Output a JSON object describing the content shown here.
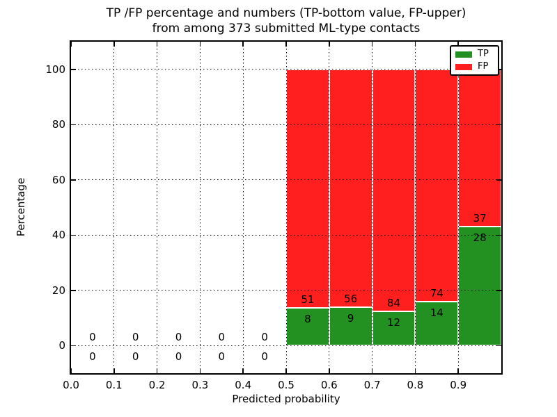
{
  "chart_data": {
    "type": "bar",
    "stacked": true,
    "title_lines": [
      "TP /FP percentage and numbers (TP-bottom value, FP-upper)",
      "from among 373 submitted ML-type contacts"
    ],
    "xlabel": "Predicted probability",
    "ylabel": "Percentage",
    "xlim": [
      0.0,
      1.0
    ],
    "ylim": [
      -10,
      110
    ],
    "xticks": [
      {
        "value": 0.0,
        "label": "0.0"
      },
      {
        "value": 0.1,
        "label": "0.1"
      },
      {
        "value": 0.2,
        "label": "0.2"
      },
      {
        "value": 0.3,
        "label": "0.3"
      },
      {
        "value": 0.4,
        "label": "0.4"
      },
      {
        "value": 0.5,
        "label": "0.5"
      },
      {
        "value": 0.6,
        "label": "0.6"
      },
      {
        "value": 0.7,
        "label": "0.7"
      },
      {
        "value": 0.8,
        "label": "0.8"
      },
      {
        "value": 0.9,
        "label": "0.9"
      }
    ],
    "yticks": [
      {
        "value": 0,
        "label": "0"
      },
      {
        "value": 20,
        "label": "20"
      },
      {
        "value": 40,
        "label": "40"
      },
      {
        "value": 60,
        "label": "60"
      },
      {
        "value": 80,
        "label": "80"
      },
      {
        "value": 100,
        "label": "100"
      }
    ],
    "grid": {
      "style": "dotted",
      "axes": "both",
      "drawn_above_bars": true
    },
    "colors": {
      "tp": "#229122",
      "fp": "#ff1f1f",
      "bar_edge": "#ffffff"
    },
    "legend": {
      "position": "upper-right",
      "entries": [
        {
          "label": "TP",
          "color_key": "tp"
        },
        {
          "label": "FP",
          "color_key": "fp"
        }
      ]
    },
    "annotation_rule": "FP count above TP/FP boundary, TP count below; bars are percentage-stacked to 100",
    "bins": [
      {
        "range": [
          0.0,
          0.1
        ],
        "tp": 0,
        "fp": 0
      },
      {
        "range": [
          0.1,
          0.2
        ],
        "tp": 0,
        "fp": 0
      },
      {
        "range": [
          0.2,
          0.3
        ],
        "tp": 0,
        "fp": 0
      },
      {
        "range": [
          0.3,
          0.4
        ],
        "tp": 0,
        "fp": 0
      },
      {
        "range": [
          0.4,
          0.5
        ],
        "tp": 0,
        "fp": 0
      },
      {
        "range": [
          0.5,
          0.6
        ],
        "tp": 8,
        "fp": 51
      },
      {
        "range": [
          0.6,
          0.7
        ],
        "tp": 9,
        "fp": 56
      },
      {
        "range": [
          0.7,
          0.8
        ],
        "tp": 12,
        "fp": 84
      },
      {
        "range": [
          0.8,
          0.9
        ],
        "tp": 14,
        "fp": 74
      },
      {
        "range": [
          0.9,
          1.0
        ],
        "tp": 28,
        "fp": 37
      }
    ],
    "total_submitted": "373"
  }
}
